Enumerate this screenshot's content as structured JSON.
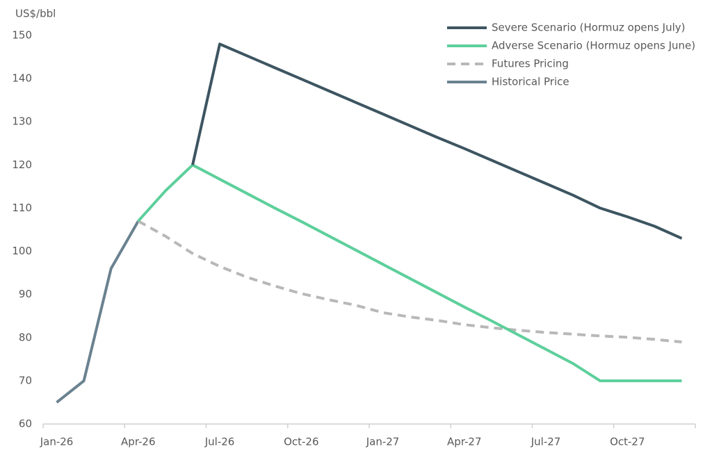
{
  "chart_data": {
    "type": "line",
    "y_label": "US$/bbl",
    "categories": [
      "Jan-26",
      null,
      null,
      "Apr-26",
      null,
      null,
      "Jul-26",
      null,
      null,
      "Oct-26",
      null,
      null,
      "Jan-27",
      null,
      null,
      "Apr-27",
      null,
      null,
      "Jul-27",
      null,
      null,
      "Oct-27",
      null,
      null
    ],
    "series": [
      {
        "name": "Severe Scenario (Hormuz opens July)",
        "color": "#3d5561",
        "dashed": false,
        "values": [
          null,
          null,
          null,
          null,
          null,
          120,
          148,
          145.3,
          142.6,
          139.9,
          137.2,
          134.5,
          131.8,
          129.1,
          126.4,
          123.8,
          121.1,
          118.4,
          115.7,
          113,
          110,
          108,
          105.8,
          103
        ]
      },
      {
        "name": "Adverse Scenario (Hormuz opens June)",
        "color": "#5dcf9b",
        "dashed": false,
        "values": [
          null,
          null,
          null,
          107,
          114,
          120,
          116.7,
          113.4,
          110.1,
          106.9,
          103.6,
          100.3,
          97,
          93.7,
          90.4,
          87.1,
          83.9,
          80.6,
          77.3,
          74,
          70,
          70,
          70,
          70
        ]
      },
      {
        "name": "Futures Pricing",
        "color": "#b8b8b8",
        "dashed": true,
        "values": [
          null,
          null,
          null,
          107,
          103.5,
          99.5,
          96.5,
          94,
          92,
          90.2,
          88.8,
          87.5,
          85.8,
          84.8,
          84,
          83,
          82.3,
          81.7,
          81.2,
          80.8,
          80.4,
          80.1,
          79.6,
          79
        ]
      },
      {
        "name": "Historical Price",
        "color": "#6a8290",
        "dashed": false,
        "values": [
          65,
          70,
          96,
          107,
          null,
          null,
          null,
          null,
          null,
          null,
          null,
          null,
          null,
          null,
          null,
          null,
          null,
          null,
          null,
          null,
          null,
          null,
          null,
          null
        ]
      }
    ],
    "ylim": [
      60,
      150
    ],
    "yticks": [
      60,
      70,
      80,
      90,
      100,
      110,
      120,
      130,
      140,
      150
    ],
    "grid": false,
    "legend": "upper right"
  }
}
